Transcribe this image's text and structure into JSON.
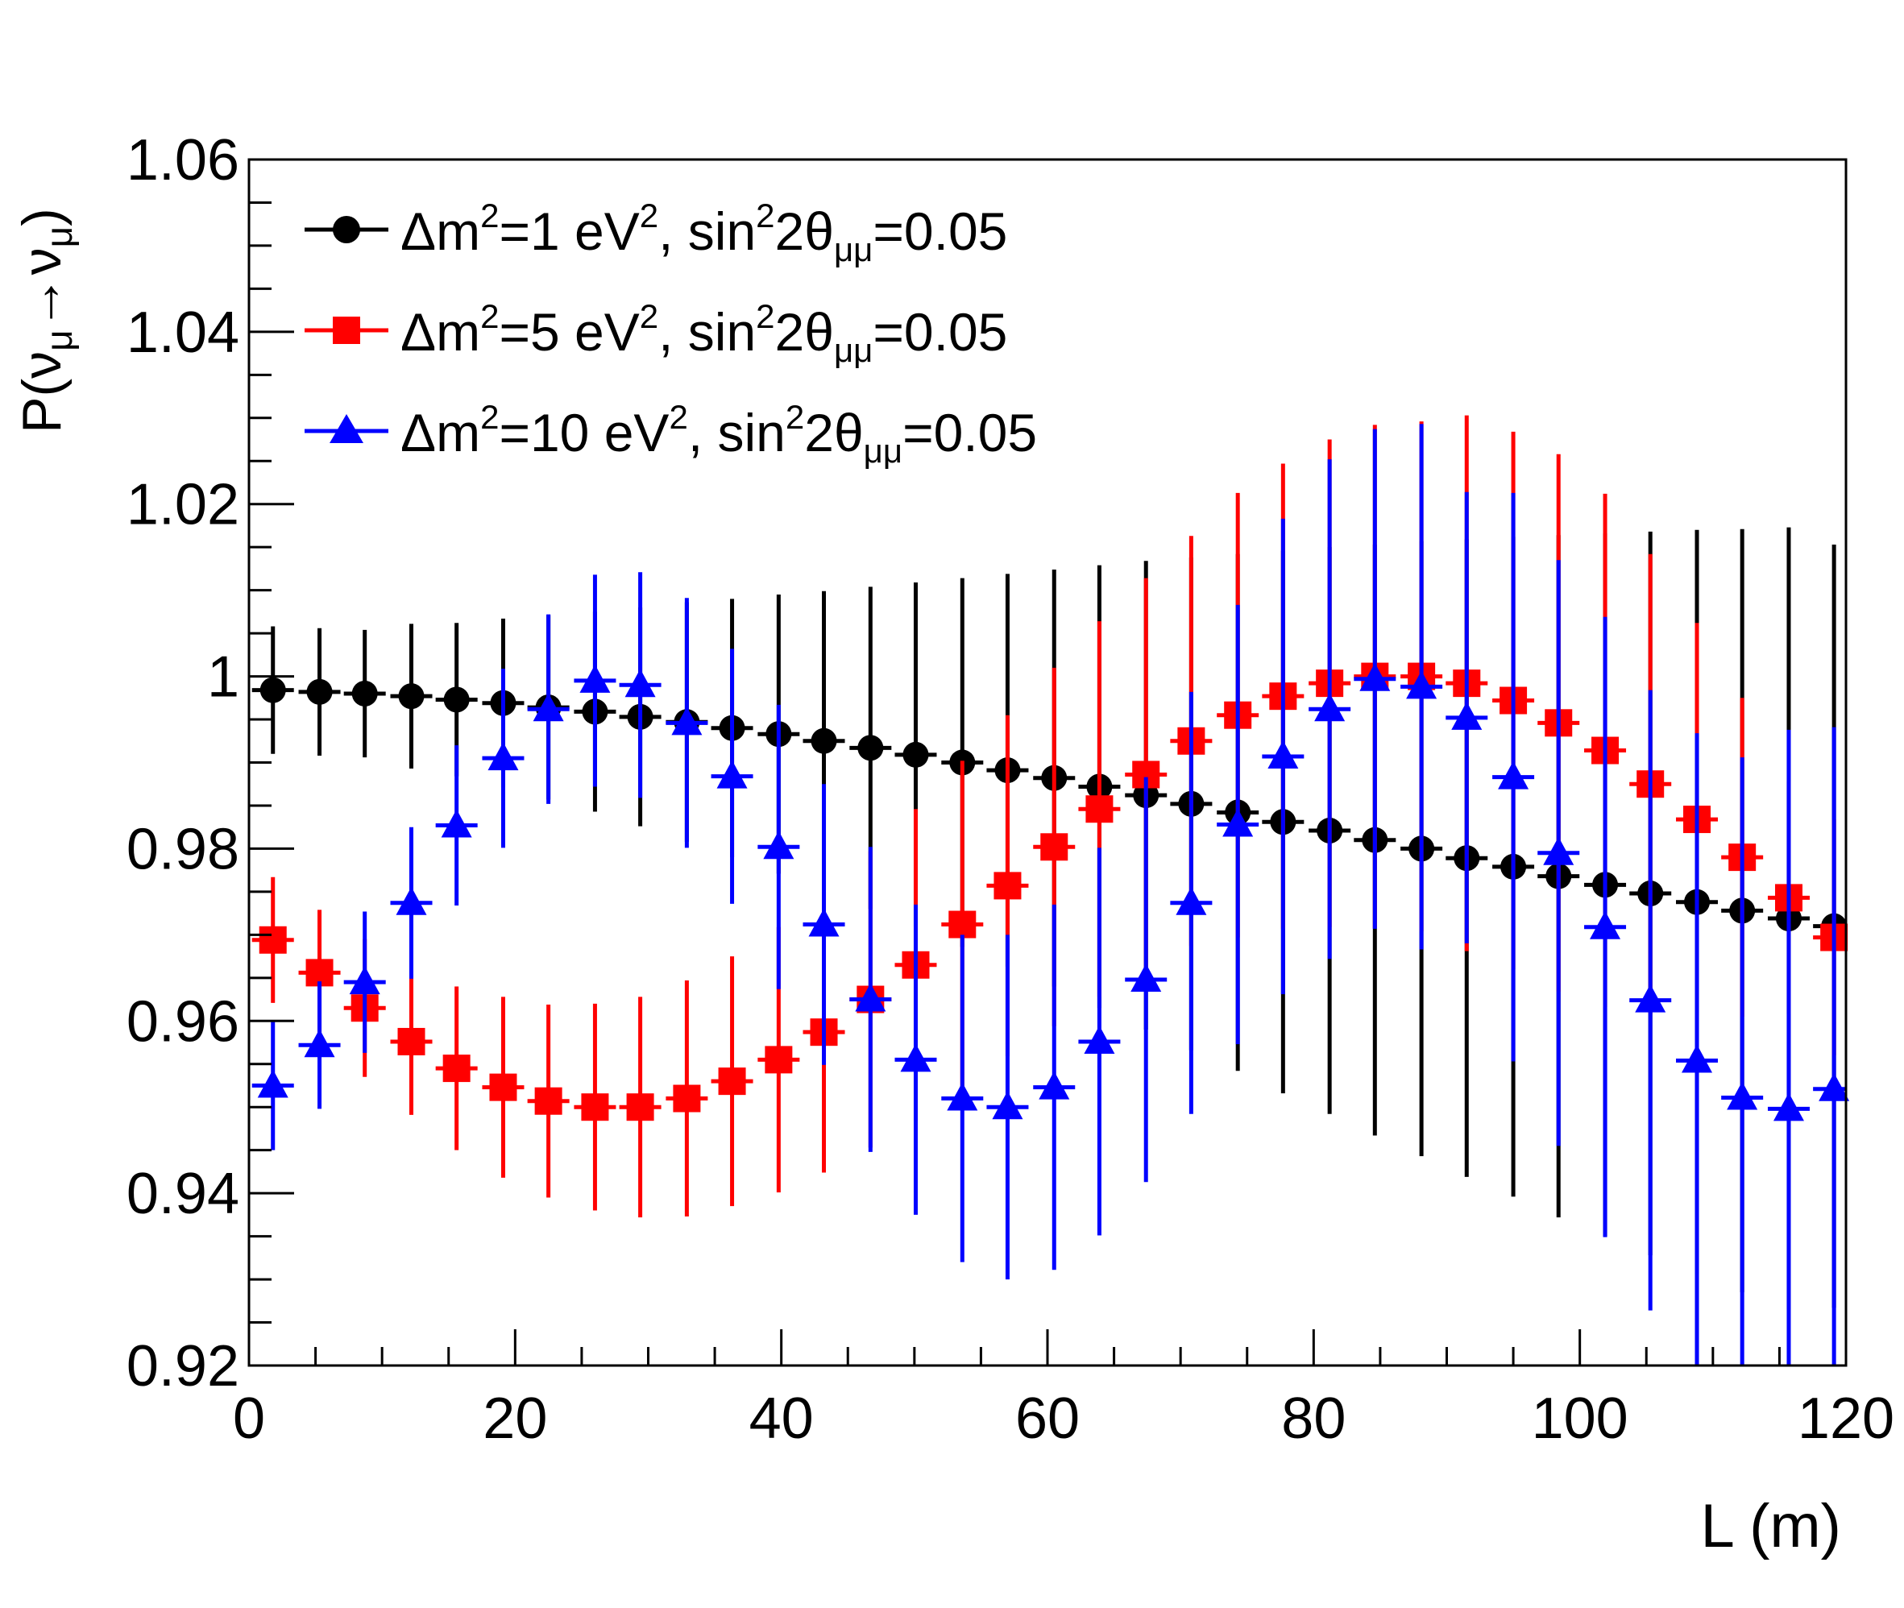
{
  "chart_data": {
    "type": "scatter",
    "title": "",
    "xlabel": "L (m)",
    "ylabel": "P(ν_μ→ν_μ)",
    "ylabel_parts": {
      "prefix": "P(",
      "nu1": "ν",
      "sub1": "μ",
      "arrow": "→",
      "nu2": "ν",
      "sub2": "μ",
      "suffix": ")"
    },
    "xlim": [
      0,
      120
    ],
    "ylim": [
      0.92,
      1.06
    ],
    "x_ticks": [
      0,
      20,
      40,
      60,
      80,
      100,
      120
    ],
    "x_tick_labels": [
      "0",
      "20",
      "40",
      "60",
      "80",
      "100",
      "120"
    ],
    "y_ticks": [
      0.92,
      0.94,
      0.96,
      0.98,
      1.0,
      1.02,
      1.04,
      1.06
    ],
    "y_tick_labels": [
      "0.92",
      "0.94",
      "0.96",
      "0.98",
      "1",
      "1.02",
      "1.04",
      "1.06"
    ],
    "grid": false,
    "legend_position": "top-left",
    "x": [
      1.8,
      5.3,
      8.7,
      12.2,
      15.6,
      19.1,
      22.5,
      26.0,
      29.4,
      32.9,
      36.3,
      39.8,
      43.2,
      46.7,
      50.1,
      53.6,
      57.0,
      60.5,
      63.9,
      67.4,
      70.8,
      74.3,
      77.7,
      81.2,
      84.6,
      88.1,
      91.5,
      95.0,
      98.4,
      101.9,
      105.3,
      108.8,
      112.2,
      115.7,
      119.1
    ],
    "series": [
      {
        "name": "Δm²=1 eV², sin²2θ_μμ=0.05",
        "legend": {
          "pre": "Δm",
          "sup1": "2",
          "mid1": "=1 eV",
          "sup2": "2",
          "mid2": ", sin",
          "sup3": "2",
          "mid3": "2θ",
          "sub": "μμ",
          "post": "=0.05"
        },
        "color": "#000000",
        "marker": "circle",
        "values": [
          0.9984,
          0.9982,
          0.998,
          0.9977,
          0.9973,
          0.9969,
          0.9964,
          0.9959,
          0.9953,
          0.9947,
          0.994,
          0.9933,
          0.9925,
          0.9917,
          0.9909,
          0.99,
          0.9891,
          0.9882,
          0.9872,
          0.9862,
          0.9852,
          0.9842,
          0.9831,
          0.9821,
          0.981,
          0.98,
          0.9789,
          0.9779,
          0.9768,
          0.9758,
          0.9748,
          0.9738,
          0.9728,
          0.9719,
          0.971
        ],
        "errors": [
          0.0074,
          0.0074,
          0.0074,
          0.0084,
          0.0089,
          0.0098,
          0.0107,
          0.0116,
          0.0127,
          0.0139,
          0.015,
          0.0162,
          0.0174,
          0.0187,
          0.02,
          0.0214,
          0.0228,
          0.0242,
          0.0257,
          0.0272,
          0.0286,
          0.03,
          0.0315,
          0.0329,
          0.0343,
          0.0357,
          0.037,
          0.0383,
          0.0396,
          0.0408,
          0.042,
          0.0432,
          0.0443,
          0.0454,
          0.0443
        ]
      },
      {
        "name": "Δm²=5 eV², sin²2θ_μμ=0.05",
        "legend": {
          "pre": "Δm",
          "sup1": "2",
          "mid1": "=5 eV",
          "sup2": "2",
          "mid2": ", sin",
          "sup3": "2",
          "mid3": "2θ",
          "sub": "μμ",
          "post": "=0.05"
        },
        "color": "#ff0000",
        "marker": "square",
        "values": [
          0.9694,
          0.9656,
          0.9615,
          0.9576,
          0.9545,
          0.9523,
          0.9507,
          0.95,
          0.95,
          0.951,
          0.953,
          0.9555,
          0.9587,
          0.9625,
          0.9665,
          0.9712,
          0.9757,
          0.9802,
          0.9846,
          0.9886,
          0.9925,
          0.9955,
          0.9977,
          0.9992,
          1.0,
          1.0,
          0.9992,
          0.9972,
          0.9946,
          0.9914,
          0.9875,
          0.9834,
          0.979,
          0.9743,
          0.9697
        ],
        "errors": [
          0.0073,
          0.0073,
          0.008,
          0.0085,
          0.0095,
          0.0105,
          0.0112,
          0.012,
          0.0128,
          0.0137,
          0.0145,
          0.0154,
          0.0163,
          0.0172,
          0.0181,
          0.019,
          0.0198,
          0.0208,
          0.0218,
          0.0228,
          0.0238,
          0.0258,
          0.027,
          0.0283,
          0.0292,
          0.0296,
          0.0311,
          0.0312,
          0.0312,
          0.0298,
          0.0267,
          0.0228,
          0.0185,
          0.0135,
          0.0137
        ]
      },
      {
        "name": "Δm²=10 eV², sin²2θ_μμ=0.05",
        "legend": {
          "pre": "Δm",
          "sup1": "2",
          "mid1": "=10 eV",
          "sup2": "2",
          "mid2": ", sin",
          "sup3": "2",
          "mid3": "2θ",
          "sub": "μμ",
          "post": "=0.05"
        },
        "color": "#0000ff",
        "marker": "triangle",
        "values": [
          0.9525,
          0.9572,
          0.9645,
          0.9737,
          0.9827,
          0.9905,
          0.9962,
          0.9995,
          0.999,
          0.9946,
          0.9884,
          0.9802,
          0.9712,
          0.9625,
          0.9555,
          0.951,
          0.95,
          0.9523,
          0.9576,
          0.9648,
          0.9737,
          0.9828,
          0.9907,
          0.9962,
          0.9997,
          0.9988,
          0.9952,
          0.9883,
          0.9795,
          0.9709,
          0.9624,
          0.9554,
          0.9511,
          0.9498,
          0.9521
        ],
        "errors": [
          0.0075,
          0.0074,
          0.0082,
          0.0088,
          0.0093,
          0.0104,
          0.011,
          0.0123,
          0.0131,
          0.0145,
          0.0148,
          0.0165,
          0.0163,
          0.0177,
          0.018,
          0.019,
          0.02,
          0.0212,
          0.0225,
          0.0235,
          0.0245,
          0.0255,
          0.0276,
          0.029,
          0.029,
          0.0305,
          0.0262,
          0.033,
          0.034,
          0.036,
          0.036,
          0.038,
          0.0395,
          0.044,
          0.042
        ]
      }
    ]
  }
}
